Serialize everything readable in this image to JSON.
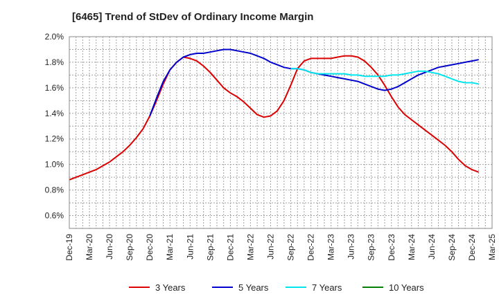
{
  "chart_data": {
    "type": "line",
    "title": "[6465]  Trend of StDev of Ordinary Income Margin",
    "xlabel": "",
    "ylabel": "",
    "x_ticks": [
      "Dec-19",
      "Mar-20",
      "Jun-20",
      "Sep-20",
      "Dec-20",
      "Mar-21",
      "Jun-21",
      "Sep-21",
      "Dec-21",
      "Mar-22",
      "Jun-22",
      "Sep-22",
      "Dec-22",
      "Mar-23",
      "Jun-23",
      "Sep-23",
      "Dec-23",
      "Mar-24",
      "Jun-24",
      "Sep-24",
      "Dec-24",
      "Mar-25"
    ],
    "y_ticks": [
      "0.6%",
      "0.8%",
      "1.0%",
      "1.2%",
      "1.4%",
      "1.6%",
      "1.8%",
      "2.0%"
    ],
    "ylim": [
      0.5,
      2.0
    ],
    "grid": true,
    "legend_position": "bottom",
    "series": [
      {
        "name": "3 Years",
        "color": "#dd0000",
        "points": [
          [
            "Dec-19",
            0.88
          ],
          [
            "Jan-20",
            0.9
          ],
          [
            "Feb-20",
            0.92
          ],
          [
            "Mar-20",
            0.94
          ],
          [
            "Apr-20",
            0.96
          ],
          [
            "May-20",
            0.99
          ],
          [
            "Jun-20",
            1.02
          ],
          [
            "Jul-20",
            1.06
          ],
          [
            "Aug-20",
            1.1
          ],
          [
            "Sep-20",
            1.15
          ],
          [
            "Oct-20",
            1.21
          ],
          [
            "Nov-20",
            1.28
          ],
          [
            "Dec-20",
            1.38
          ],
          [
            "Jan-21",
            1.5
          ],
          [
            "Feb-21",
            1.63
          ],
          [
            "Mar-21",
            1.74
          ],
          [
            "Apr-21",
            1.8
          ],
          [
            "May-21",
            1.84
          ],
          [
            "Jun-21",
            1.83
          ],
          [
            "Jul-21",
            1.81
          ],
          [
            "Aug-21",
            1.77
          ],
          [
            "Sep-21",
            1.72
          ],
          [
            "Oct-21",
            1.66
          ],
          [
            "Nov-21",
            1.6
          ],
          [
            "Dec-21",
            1.56
          ],
          [
            "Jan-22",
            1.53
          ],
          [
            "Feb-22",
            1.49
          ],
          [
            "Mar-22",
            1.44
          ],
          [
            "Apr-22",
            1.39
          ],
          [
            "May-22",
            1.37
          ],
          [
            "Jun-22",
            1.38
          ],
          [
            "Jul-22",
            1.42
          ],
          [
            "Aug-22",
            1.5
          ],
          [
            "Sep-22",
            1.62
          ],
          [
            "Oct-22",
            1.75
          ],
          [
            "Nov-22",
            1.81
          ],
          [
            "Dec-22",
            1.83
          ],
          [
            "Jan-23",
            1.83
          ],
          [
            "Feb-23",
            1.83
          ],
          [
            "Mar-23",
            1.83
          ],
          [
            "Apr-23",
            1.84
          ],
          [
            "May-23",
            1.85
          ],
          [
            "Jun-23",
            1.85
          ],
          [
            "Jul-23",
            1.84
          ],
          [
            "Aug-23",
            1.81
          ],
          [
            "Sep-23",
            1.76
          ],
          [
            "Oct-23",
            1.7
          ],
          [
            "Nov-23",
            1.62
          ],
          [
            "Dec-23",
            1.53
          ],
          [
            "Jan-24",
            1.45
          ],
          [
            "Feb-24",
            1.39
          ],
          [
            "Mar-24",
            1.35
          ],
          [
            "Apr-24",
            1.31
          ],
          [
            "May-24",
            1.27
          ],
          [
            "Jun-24",
            1.23
          ],
          [
            "Jul-24",
            1.19
          ],
          [
            "Aug-24",
            1.15
          ],
          [
            "Sep-24",
            1.1
          ],
          [
            "Oct-24",
            1.04
          ],
          [
            "Nov-24",
            0.99
          ],
          [
            "Dec-24",
            0.96
          ],
          [
            "Jan-25",
            0.94
          ]
        ]
      },
      {
        "name": "5 Years",
        "color": "#0000cc",
        "points": [
          [
            "Dec-20",
            1.38
          ],
          [
            "Jan-21",
            1.52
          ],
          [
            "Feb-21",
            1.65
          ],
          [
            "Mar-21",
            1.74
          ],
          [
            "Apr-21",
            1.8
          ],
          [
            "May-21",
            1.84
          ],
          [
            "Jun-21",
            1.86
          ],
          [
            "Jul-21",
            1.87
          ],
          [
            "Aug-21",
            1.87
          ],
          [
            "Sep-21",
            1.88
          ],
          [
            "Oct-21",
            1.89
          ],
          [
            "Nov-21",
            1.9
          ],
          [
            "Dec-21",
            1.9
          ],
          [
            "Jan-22",
            1.89
          ],
          [
            "Feb-22",
            1.88
          ],
          [
            "Mar-22",
            1.87
          ],
          [
            "Apr-22",
            1.85
          ],
          [
            "May-22",
            1.83
          ],
          [
            "Jun-22",
            1.8
          ],
          [
            "Jul-22",
            1.78
          ],
          [
            "Aug-22",
            1.76
          ],
          [
            "Sep-22",
            1.75
          ],
          [
            "Oct-22",
            1.75
          ],
          [
            "Nov-22",
            1.74
          ],
          [
            "Dec-22",
            1.72
          ],
          [
            "Jan-23",
            1.71
          ],
          [
            "Feb-23",
            1.7
          ],
          [
            "Mar-23",
            1.69
          ],
          [
            "Apr-23",
            1.68
          ],
          [
            "May-23",
            1.67
          ],
          [
            "Jun-23",
            1.66
          ],
          [
            "Jul-23",
            1.65
          ],
          [
            "Aug-23",
            1.63
          ],
          [
            "Sep-23",
            1.61
          ],
          [
            "Oct-23",
            1.59
          ],
          [
            "Nov-23",
            1.58
          ],
          [
            "Dec-23",
            1.59
          ],
          [
            "Jan-24",
            1.61
          ],
          [
            "Feb-24",
            1.64
          ],
          [
            "Mar-24",
            1.67
          ],
          [
            "Apr-24",
            1.7
          ],
          [
            "May-24",
            1.72
          ],
          [
            "Jun-24",
            1.74
          ],
          [
            "Jul-24",
            1.76
          ],
          [
            "Aug-24",
            1.77
          ],
          [
            "Sep-24",
            1.78
          ],
          [
            "Oct-24",
            1.79
          ],
          [
            "Nov-24",
            1.8
          ],
          [
            "Dec-24",
            1.81
          ],
          [
            "Jan-25",
            1.82
          ]
        ]
      },
      {
        "name": "7 Years",
        "color": "#00e5ee",
        "points": [
          [
            "Sep-22",
            1.75
          ],
          [
            "Oct-22",
            1.75
          ],
          [
            "Nov-22",
            1.74
          ],
          [
            "Dec-22",
            1.72
          ],
          [
            "Jan-23",
            1.71
          ],
          [
            "Feb-23",
            1.71
          ],
          [
            "Mar-23",
            1.71
          ],
          [
            "Apr-23",
            1.71
          ],
          [
            "May-23",
            1.71
          ],
          [
            "Jun-23",
            1.7
          ],
          [
            "Jul-23",
            1.7
          ],
          [
            "Aug-23",
            1.69
          ],
          [
            "Sep-23",
            1.69
          ],
          [
            "Oct-23",
            1.69
          ],
          [
            "Nov-23",
            1.69
          ],
          [
            "Dec-23",
            1.7
          ],
          [
            "Jan-24",
            1.7
          ],
          [
            "Feb-24",
            1.71
          ],
          [
            "Mar-24",
            1.72
          ],
          [
            "Apr-24",
            1.73
          ],
          [
            "May-24",
            1.73
          ],
          [
            "Jun-24",
            1.72
          ],
          [
            "Jul-24",
            1.71
          ],
          [
            "Aug-24",
            1.69
          ],
          [
            "Sep-24",
            1.67
          ],
          [
            "Oct-24",
            1.65
          ],
          [
            "Nov-24",
            1.64
          ],
          [
            "Dec-24",
            1.64
          ],
          [
            "Jan-25",
            1.63
          ]
        ]
      },
      {
        "name": "10 Years",
        "color": "#008000",
        "points": []
      }
    ]
  }
}
